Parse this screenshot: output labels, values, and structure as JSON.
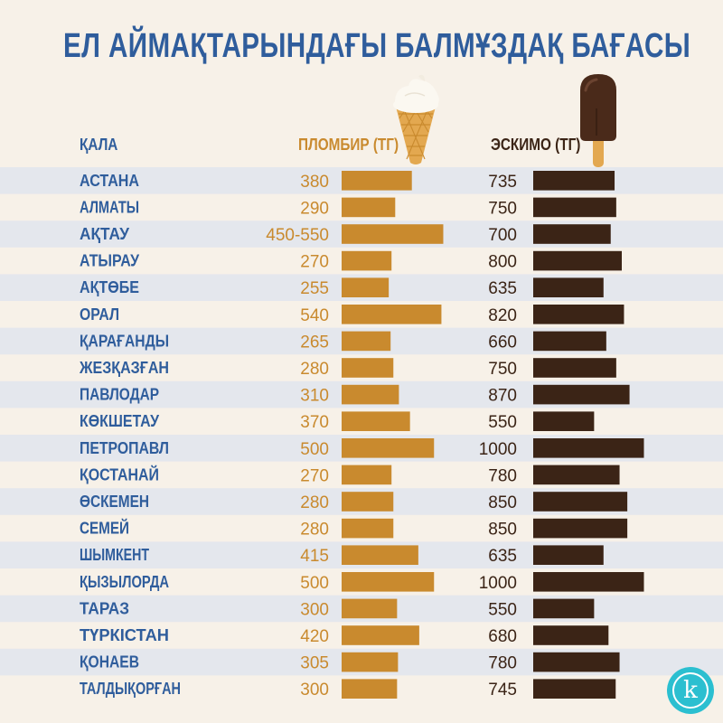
{
  "colors": {
    "title": "#2f5d9c",
    "plombir": "#c98a2e",
    "eskimo": "#3b2416",
    "stripe": "#e4e7ed",
    "background": "#f7f1e8",
    "logo": "#2bbfd0"
  },
  "logo_letter": "k",
  "icons": [
    "ice-cream-cone-icon",
    "chocolate-popsicle-icon"
  ],
  "chart_data": {
    "type": "bar",
    "title": "ЕЛ АЙМАҚТАРЫНДАҒЫ БАЛМҰЗДАҚ БАҒАСЫ",
    "category_label": "ҚАЛА",
    "categories": [
      "АСТАНА",
      "АЛМАТЫ",
      "АҚТАУ",
      "АТЫРАУ",
      "АҚТӨБЕ",
      "ОРАЛ",
      "ҚАРАҒАНДЫ",
      "ЖЕЗҚАЗҒАН",
      "ПАВЛОДАР",
      "КӨКШЕТАУ",
      "ПЕТРОПАВЛ",
      "ҚОСТАНАЙ",
      "ӨСКЕМЕН",
      "СЕМЕЙ",
      "ШЫМКЕНТ",
      "ҚЫЗЫЛОРДА",
      "ТАРАЗ",
      "ТҮРКІСТАН",
      "ҚОНАЕВ",
      "ТАЛДЫҚОРҒАН"
    ],
    "series": [
      {
        "name": "ПЛОМБИР (ТГ)",
        "labels": [
          "380",
          "290",
          "450-550",
          "270",
          "255",
          "540",
          "265",
          "280",
          "310",
          "370",
          "500",
          "270",
          "280",
          "280",
          "415",
          "500",
          "300",
          "420",
          "305",
          "300"
        ],
        "values": [
          380,
          290,
          550,
          270,
          255,
          540,
          265,
          280,
          310,
          370,
          500,
          270,
          280,
          280,
          415,
          500,
          300,
          420,
          305,
          300
        ]
      },
      {
        "name": "ЭСКИМО (ТГ)",
        "labels": [
          "735",
          "750",
          "700",
          "800",
          "635",
          "820",
          "660",
          "750",
          "870",
          "550",
          "1000",
          "780",
          "850",
          "850",
          "635",
          "1000",
          "550",
          "680",
          "780",
          "745"
        ],
        "values": [
          735,
          750,
          700,
          800,
          635,
          820,
          660,
          750,
          870,
          550,
          1000,
          780,
          850,
          850,
          635,
          1000,
          550,
          680,
          780,
          745
        ]
      }
    ],
    "orientation": "horizontal",
    "grid": false,
    "legend": "none"
  }
}
